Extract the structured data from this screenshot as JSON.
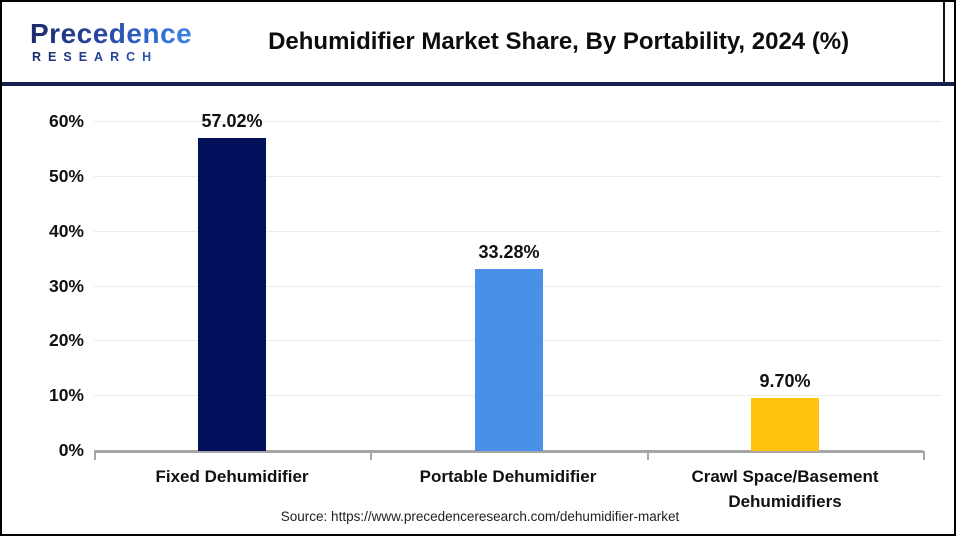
{
  "header": {
    "logo_line1": "Precedence",
    "logo_line2": "RESEARCH"
  },
  "chart_data": {
    "type": "bar",
    "title": "Dehumidifier Market Share, By Portability, 2024 (%)",
    "categories": [
      "Fixed Dehumidifier",
      "Portable Dehumidifier",
      "Crawl Space/Basement Dehumidifiers"
    ],
    "values": [
      57.02,
      33.28,
      9.7
    ],
    "value_labels": [
      "57.02%",
      "33.28%",
      "9.70%"
    ],
    "bar_colors": [
      "#02105c",
      "#4a90e8",
      "#ffc20e"
    ],
    "xlabel": "",
    "ylabel": "",
    "ylim": [
      0,
      60
    ],
    "yticks": [
      0,
      10,
      20,
      30,
      40,
      50,
      60
    ],
    "ytick_labels": [
      "0%",
      "10%",
      "20%",
      "30%",
      "40%",
      "50%",
      "60%"
    ],
    "grid": "horizontal-light",
    "legend": "none"
  },
  "footer": {
    "source": "Source: https://www.precedenceresearch.com/dehumidifier-market"
  },
  "colors": {
    "accent_separator": "#16204e",
    "axis": "#a6a6a6",
    "bar_navy": "#02105c",
    "bar_blue": "#4a90e8",
    "bar_yellow": "#ffc20e"
  }
}
